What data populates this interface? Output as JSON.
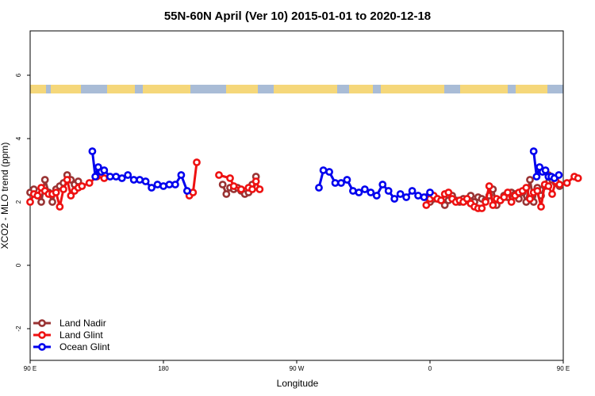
{
  "chart_data": {
    "type": "line",
    "title": "55N-60N April (Ver 10)   2015-01-01 to 2020-12-18",
    "xlabel": "Longitude",
    "ylabel": "XCO2 - MLO trend (ppm)",
    "xlim": [
      90,
      450
    ],
    "ylim": [
      -3,
      7.4
    ],
    "x_ticks": [
      {
        "value": 90,
        "label": "90 E"
      },
      {
        "value": 180,
        "label": "180"
      },
      {
        "value": 270,
        "label": "90 W"
      },
      {
        "value": 360,
        "label": "0"
      },
      {
        "value": 450,
        "label": "90 E"
      },
      {
        "value": 540,
        "label": "180"
      }
    ],
    "y_ticks": [
      {
        "value": -2,
        "label": "-2"
      },
      {
        "value": 0,
        "label": "0"
      },
      {
        "value": 2,
        "label": "2"
      },
      {
        "value": 4,
        "label": "4"
      },
      {
        "value": 6,
        "label": "6"
      }
    ],
    "legend_position": "bottom-left",
    "grid": false,
    "series": [
      {
        "name": "Land Nadir",
        "color": "#993333",
        "points": [
          [
            90,
            2.3
          ],
          [
            92.5,
            2.4
          ],
          [
            95,
            2.2
          ],
          [
            97.5,
            2.0
          ],
          [
            100,
            2.7
          ],
          [
            102.5,
            2.3
          ],
          [
            105,
            2.0
          ],
          [
            107.5,
            2.4
          ],
          [
            110,
            2.5
          ],
          [
            112.5,
            2.6
          ],
          [
            115,
            2.85
          ],
          [
            117.5,
            2.7
          ],
          [
            120,
            2.55
          ],
          [
            122.5,
            2.65
          ],
          [
            220,
            2.55
          ],
          [
            222.5,
            2.25
          ],
          [
            225,
            2.45
          ],
          [
            227.5,
            2.4
          ],
          [
            230,
            2.45
          ],
          [
            232.5,
            2.35
          ],
          [
            235,
            2.25
          ],
          [
            237.5,
            2.3
          ],
          [
            240,
            2.55
          ],
          [
            242.5,
            2.8
          ],
          [
            357.5,
            2.15
          ],
          [
            360,
            2.0
          ],
          [
            362.5,
            2.1
          ],
          [
            365,
            2.1
          ],
          [
            367.5,
            2.05
          ],
          [
            370,
            1.9
          ],
          [
            372.5,
            2.05
          ],
          [
            375,
            2.2
          ],
          [
            377.5,
            2.05
          ],
          [
            380,
            2.0
          ],
          [
            382.5,
            2.1
          ],
          [
            385,
            2.05
          ],
          [
            387.5,
            2.2
          ],
          [
            390,
            2.0
          ],
          [
            392.5,
            2.15
          ],
          [
            395,
            2.1
          ],
          [
            397.5,
            2.05
          ],
          [
            400,
            2.2
          ],
          [
            402.5,
            2.4
          ],
          [
            405,
            1.9
          ],
          [
            407.5,
            2.05
          ],
          [
            410,
            2.2
          ],
          [
            412.5,
            2.15
          ],
          [
            415,
            2.3
          ],
          [
            417.5,
            2.25
          ],
          [
            420,
            2.1
          ],
          [
            422.5,
            2.3
          ],
          [
            425,
            2.0
          ],
          [
            427.5,
            2.7
          ],
          [
            430,
            2.0
          ],
          [
            432.5,
            2.45
          ],
          [
            435,
            2.2
          ],
          [
            437.5,
            2.5
          ],
          [
            440,
            2.85
          ],
          [
            442.5,
            2.7
          ],
          [
            445,
            2.6
          ],
          [
            447.5,
            2.5
          ]
        ]
      },
      {
        "name": "Land Glint",
        "color": "#ee1111",
        "points": [
          [
            90,
            2.0
          ],
          [
            92.5,
            2.25
          ],
          [
            95,
            2.2
          ],
          [
            97.5,
            2.45
          ],
          [
            100,
            2.35
          ],
          [
            102.5,
            2.25
          ],
          [
            105,
            2.25
          ],
          [
            107.5,
            2.3
          ],
          [
            110,
            1.85
          ],
          [
            112.5,
            2.4
          ],
          [
            115,
            2.7
          ],
          [
            117.5,
            2.2
          ],
          [
            120,
            2.35
          ],
          [
            122.5,
            2.45
          ],
          [
            125,
            2.5
          ],
          [
            130,
            2.6
          ],
          [
            135,
            2.8
          ],
          [
            140,
            2.75
          ],
          [
            197.5,
            2.2
          ],
          [
            200,
            2.3
          ],
          [
            202.5,
            3.25
          ],
          [
            217.5,
            2.85
          ],
          [
            225,
            2.75
          ],
          [
            227.5,
            2.5
          ],
          [
            232.5,
            2.4
          ],
          [
            237.5,
            2.45
          ],
          [
            240,
            2.4
          ],
          [
            242.5,
            2.65
          ],
          [
            245,
            2.4
          ],
          [
            357.5,
            1.9
          ],
          [
            360,
            2.1
          ],
          [
            362.5,
            2.2
          ],
          [
            365,
            2.1
          ],
          [
            367.5,
            2.05
          ],
          [
            370,
            2.25
          ],
          [
            372.5,
            2.3
          ],
          [
            375,
            2.1
          ],
          [
            377.5,
            2.0
          ],
          [
            380,
            2.05
          ],
          [
            382.5,
            2.0
          ],
          [
            385,
            2.1
          ],
          [
            387.5,
            1.95
          ],
          [
            390,
            1.85
          ],
          [
            392.5,
            1.8
          ],
          [
            395,
            1.8
          ],
          [
            397.5,
            2.0
          ],
          [
            400,
            2.5
          ],
          [
            402.5,
            1.9
          ],
          [
            405,
            2.1
          ],
          [
            407.5,
            2.05
          ],
          [
            410,
            2.15
          ],
          [
            412.5,
            2.3
          ],
          [
            415,
            2.0
          ],
          [
            417.5,
            2.2
          ],
          [
            420,
            2.3
          ],
          [
            422.5,
            2.35
          ],
          [
            425,
            2.45
          ],
          [
            427.5,
            2.1
          ],
          [
            430,
            2.3
          ],
          [
            432.5,
            2.35
          ],
          [
            435,
            1.85
          ],
          [
            437.5,
            2.55
          ],
          [
            440,
            2.5
          ],
          [
            442.5,
            2.25
          ],
          [
            445,
            2.65
          ],
          [
            447.5,
            2.55
          ],
          [
            452.5,
            2.6
          ],
          [
            457.5,
            2.8
          ],
          [
            460,
            2.75
          ]
        ]
      },
      {
        "name": "Ocean Glint",
        "color": "#0000ee",
        "points": [
          [
            132,
            3.6
          ],
          [
            134,
            2.8
          ],
          [
            136,
            3.1
          ],
          [
            138,
            2.95
          ],
          [
            140,
            3.0
          ],
          [
            144,
            2.8
          ],
          [
            148,
            2.8
          ],
          [
            152,
            2.75
          ],
          [
            156,
            2.85
          ],
          [
            160,
            2.7
          ],
          [
            164,
            2.7
          ],
          [
            168,
            2.65
          ],
          [
            172,
            2.45
          ],
          [
            176,
            2.55
          ],
          [
            180,
            2.5
          ],
          [
            184,
            2.55
          ],
          [
            188,
            2.55
          ],
          [
            192,
            2.85
          ],
          [
            196,
            2.35
          ],
          [
            285,
            2.45
          ],
          [
            288,
            3.0
          ],
          [
            292,
            2.95
          ],
          [
            296,
            2.6
          ],
          [
            300,
            2.6
          ],
          [
            304,
            2.7
          ],
          [
            308,
            2.35
          ],
          [
            312,
            2.3
          ],
          [
            316,
            2.4
          ],
          [
            320,
            2.3
          ],
          [
            324,
            2.2
          ],
          [
            328,
            2.55
          ],
          [
            332,
            2.35
          ],
          [
            336,
            2.1
          ],
          [
            340,
            2.25
          ],
          [
            344,
            2.15
          ],
          [
            348,
            2.35
          ],
          [
            352,
            2.2
          ],
          [
            356,
            2.15
          ],
          [
            360,
            2.3
          ],
          [
            430,
            3.6
          ],
          [
            432,
            2.8
          ],
          [
            434,
            3.1
          ],
          [
            436,
            2.95
          ],
          [
            438,
            3.0
          ],
          [
            440,
            2.8
          ],
          [
            442,
            2.8
          ],
          [
            444,
            2.75
          ],
          [
            447,
            2.85
          ]
        ]
      }
    ]
  }
}
